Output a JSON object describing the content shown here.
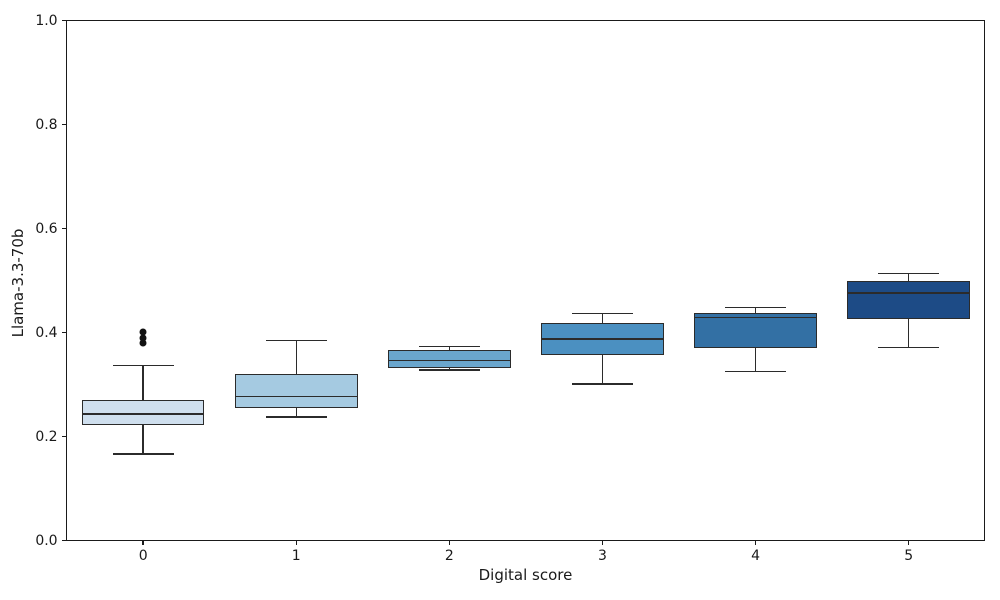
{
  "chart_data": {
    "type": "box",
    "title": "",
    "xlabel": "Digital score",
    "ylabel": "Llama-3.3-70b",
    "categories": [
      "0",
      "1",
      "2",
      "3",
      "4",
      "5"
    ],
    "ylim": [
      0.0,
      1.0
    ],
    "yticks": [
      {
        "value": 0.0,
        "label": "0.0"
      },
      {
        "value": 0.2,
        "label": "0.2"
      },
      {
        "value": 0.4,
        "label": "0.4"
      },
      {
        "value": 0.6,
        "label": "0.6"
      },
      {
        "value": 0.8,
        "label": "0.8"
      },
      {
        "value": 1.0,
        "label": "1.0"
      }
    ],
    "grid": false,
    "legend": false,
    "edge_color": "#2b2b2b",
    "outlier_color": "#111111",
    "boxes": [
      {
        "category": "0",
        "whisker_low": 0.167,
        "q1": 0.222,
        "median": 0.244,
        "q3": 0.271,
        "whisker_high": 0.337,
        "outliers": [
          0.381,
          0.389,
          0.401
        ],
        "color": "#cfdfee"
      },
      {
        "category": "1",
        "whisker_low": 0.238,
        "q1": 0.256,
        "median": 0.277,
        "q3": 0.321,
        "whisker_high": 0.385,
        "outliers": [],
        "color": "#a5cae1"
      },
      {
        "category": "2",
        "whisker_low": 0.328,
        "q1": 0.332,
        "median": 0.347,
        "q3": 0.366,
        "whisker_high": 0.374,
        "outliers": [],
        "color": "#6aa6cd"
      },
      {
        "category": "3",
        "whisker_low": 0.301,
        "q1": 0.358,
        "median": 0.388,
        "q3": 0.418,
        "whisker_high": 0.437,
        "outliers": [],
        "color": "#4b90c1"
      },
      {
        "category": "4",
        "whisker_low": 0.325,
        "q1": 0.371,
        "median": 0.429,
        "q3": 0.437,
        "whisker_high": 0.448,
        "outliers": [],
        "color": "#3370a4"
      },
      {
        "category": "5",
        "whisker_low": 0.371,
        "q1": 0.427,
        "median": 0.476,
        "q3": 0.499,
        "whisker_high": 0.514,
        "outliers": [],
        "color": "#1d4b86"
      }
    ]
  }
}
